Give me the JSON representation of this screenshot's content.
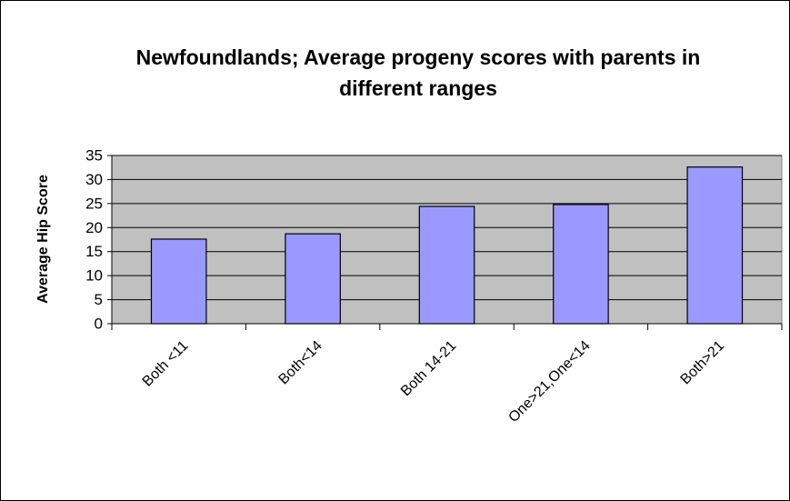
{
  "chart_data": {
    "type": "bar",
    "title": "Newfoundlands; Average progeny scores with parents in different ranges",
    "y_label": "Average Hip Score",
    "categories": [
      "Both <11",
      "Both<14",
      "Both 14-21",
      "One>21,One<14",
      "Both>21"
    ],
    "values": [
      17.6,
      18.7,
      24.4,
      24.8,
      32.6
    ],
    "color": "#9999ff",
    "ylim": [
      0,
      35
    ],
    "yticks": [
      0,
      5,
      10,
      15,
      20,
      25,
      30,
      35
    ],
    "grid": true
  }
}
